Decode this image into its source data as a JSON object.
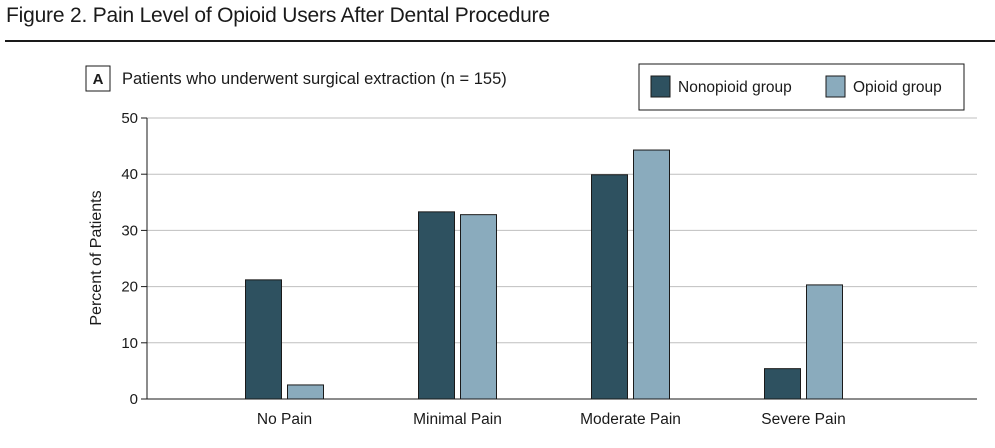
{
  "figure": {
    "title": "Figure 2. Pain Level of Opioid Users After Dental Procedure"
  },
  "panel": {
    "letter": "A",
    "subtitle": "Patients who underwent surgical extraction (n = 155)"
  },
  "chart_data": {
    "type": "bar",
    "title": "Patients who underwent surgical extraction (n = 155)",
    "xlabel": "",
    "ylabel": "Percent of Patients",
    "ylim": [
      0,
      50
    ],
    "yticks": [
      0,
      10,
      20,
      30,
      40,
      50
    ],
    "grid": true,
    "legend_position": "top-right",
    "categories": [
      "No Pain",
      "Minimal Pain",
      "Moderate Pain",
      "Severe Pain"
    ],
    "series": [
      {
        "name": "Nonopioid group",
        "color": "#2e5160",
        "values": [
          21.2,
          33.3,
          39.9,
          5.4
        ]
      },
      {
        "name": "Opioid group",
        "color": "#8aabbd",
        "values": [
          2.5,
          32.8,
          44.3,
          20.3
        ]
      }
    ]
  }
}
